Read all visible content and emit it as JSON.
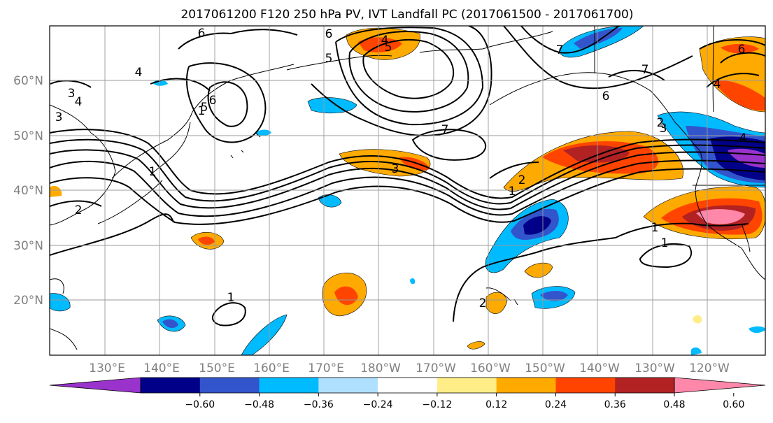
{
  "title": "2017061200 F120 250 hPa PV, IVT Landfall PC (2017061500 - 2017061700)",
  "lon_labels": [
    "130°E",
    "140°E",
    "150°E",
    "160°E",
    "170°E",
    "180°W",
    "170°W",
    "160°W",
    "150°W",
    "140°W",
    "130°W",
    "120°W"
  ],
  "lat_labels": [
    "60°N",
    "50°N",
    "40°N",
    "30°N",
    "20°N"
  ],
  "colorbar": {
    "colors": [
      "#9933cc",
      "#000088",
      "#3355cc",
      "#00bbff",
      "#b0e0ff",
      "#ffffff",
      "#ffee88",
      "#ffaa00",
      "#ff4400",
      "#b22222",
      "#ff88aa"
    ],
    "tick_labels": [
      "−0.60",
      "−0.48",
      "−0.36",
      "−0.24",
      "−0.12",
      "0.12",
      "0.24",
      "0.36",
      "0.48",
      "0.60"
    ]
  },
  "pv_contour_labels": [
    "6",
    "6",
    "5",
    "4",
    "3",
    "4",
    "3",
    "2",
    "5",
    "6",
    "5",
    "4",
    "1",
    "2",
    "1",
    "7",
    "6",
    "7",
    "7",
    "6",
    "4",
    "3",
    "4",
    "3",
    "2",
    "1",
    "1",
    "2",
    "1",
    "1"
  ]
}
